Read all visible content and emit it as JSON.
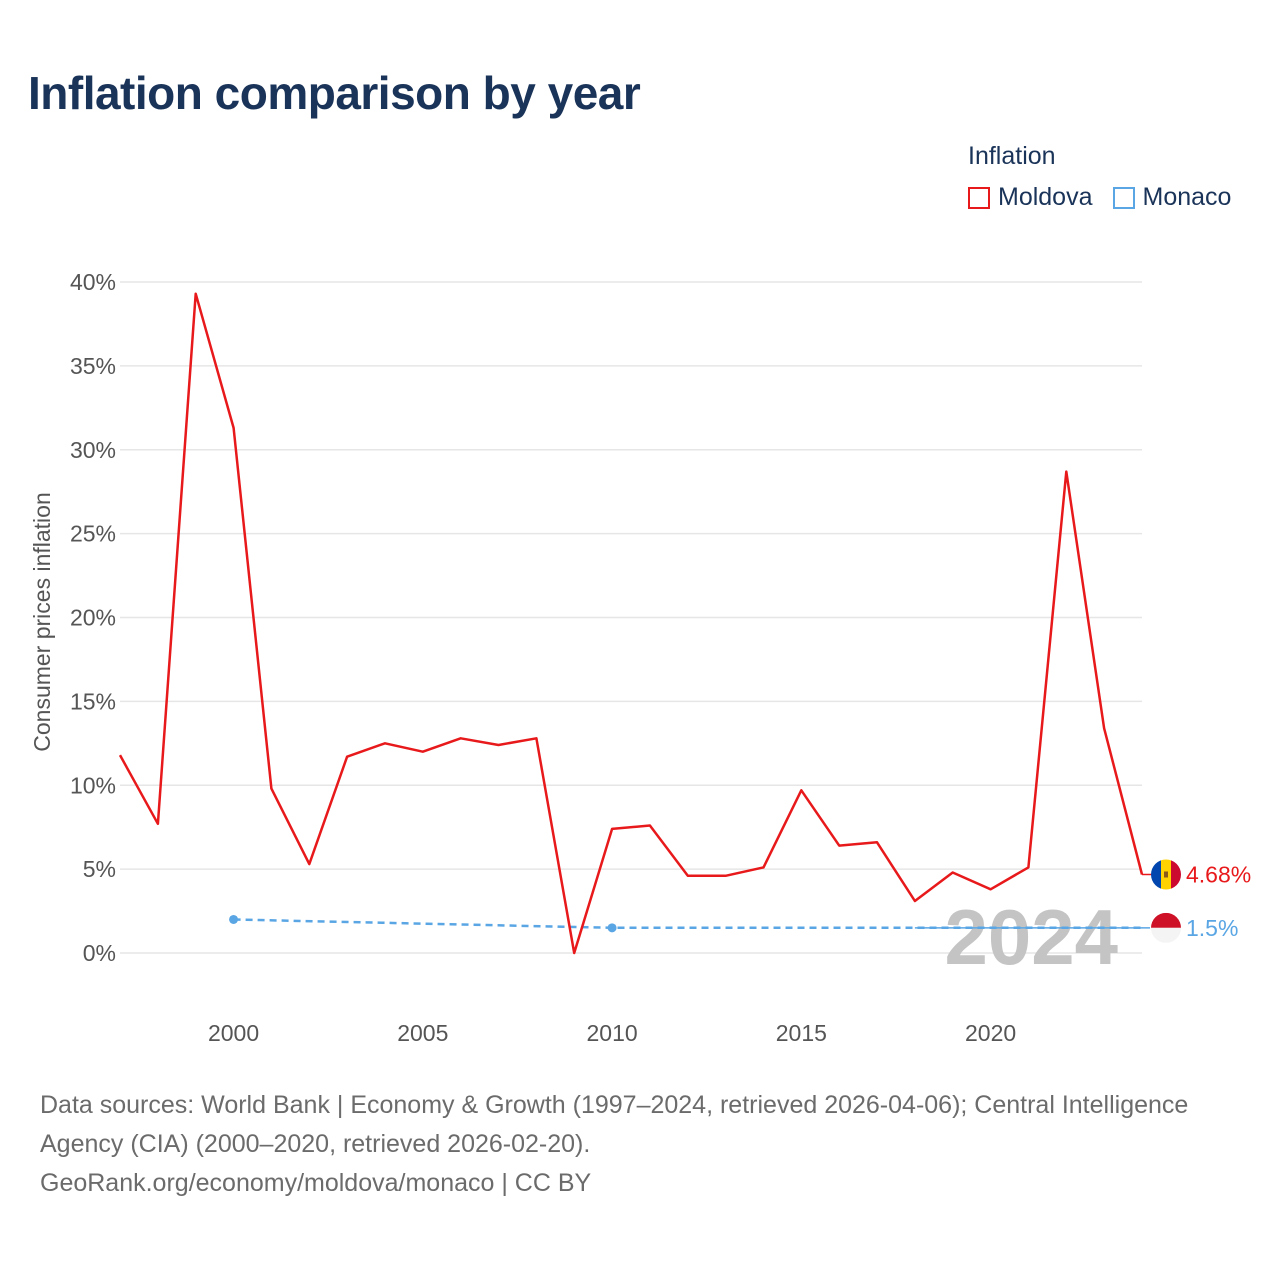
{
  "title": "Inflation comparison by year",
  "legend": {
    "title": "Inflation",
    "items": [
      {
        "label": "Moldova",
        "color": "#e8191b"
      },
      {
        "label": "Monaco",
        "color": "#5aa6e4"
      }
    ]
  },
  "year_watermark": "2024",
  "chart_data": {
    "type": "line",
    "title": "Inflation comparison by year",
    "xlabel": "",
    "ylabel": "Consumer prices inflation",
    "xlim": [
      1997,
      2024
    ],
    "ylim": [
      0,
      40
    ],
    "x_ticks": [
      2000,
      2005,
      2010,
      2015,
      2020
    ],
    "x_tick_labels": [
      "2000",
      "2005",
      "2010",
      "2015",
      "2020"
    ],
    "y_ticks": [
      0,
      5,
      10,
      15,
      20,
      25,
      30,
      35,
      40
    ],
    "y_tick_labels": [
      "0%",
      "5%",
      "10%",
      "15%",
      "20%",
      "25%",
      "30%",
      "35%",
      "40%"
    ],
    "grid": true,
    "legend_position": "top-right",
    "series": [
      {
        "name": "Moldova",
        "color": "#e8191b",
        "style": "solid",
        "x": [
          1997,
          1998,
          1999,
          2000,
          2001,
          2002,
          2003,
          2004,
          2005,
          2006,
          2007,
          2008,
          2009,
          2010,
          2011,
          2012,
          2013,
          2014,
          2015,
          2016,
          2017,
          2018,
          2019,
          2020,
          2021,
          2022,
          2023,
          2024
        ],
        "values": [
          11.8,
          7.7,
          39.3,
          31.3,
          9.8,
          5.3,
          11.7,
          12.5,
          12.0,
          12.8,
          12.4,
          12.8,
          0.0,
          7.4,
          7.6,
          4.6,
          4.6,
          5.1,
          9.7,
          6.4,
          6.6,
          3.1,
          4.8,
          3.8,
          5.1,
          28.7,
          13.4,
          4.68
        ],
        "end_label": "4.68%"
      },
      {
        "name": "Monaco",
        "color": "#5aa6e4",
        "style": "dashed",
        "x": [
          2000,
          2010,
          2020,
          2024
        ],
        "values": [
          2.0,
          1.5,
          1.5,
          1.5
        ],
        "markers": [
          2000,
          2010
        ],
        "end_label": "1.5%"
      }
    ]
  },
  "footer": {
    "sources": "Data sources: World Bank | Economy & Growth (1997–2024, retrieved 2026-04-06); Central Intelligence Agency (CIA) (2000–2020, retrieved 2026-02-20).",
    "url": "GeoRank.org/economy/moldova/monaco | CC BY"
  },
  "flags": [
    {
      "name": "moldova-flag",
      "colors": [
        "#0046ae",
        "#ffd200",
        "#cc092f"
      ]
    },
    {
      "name": "monaco-flag",
      "colors": [
        "#ce1126",
        "#f4f4f4"
      ]
    }
  ]
}
